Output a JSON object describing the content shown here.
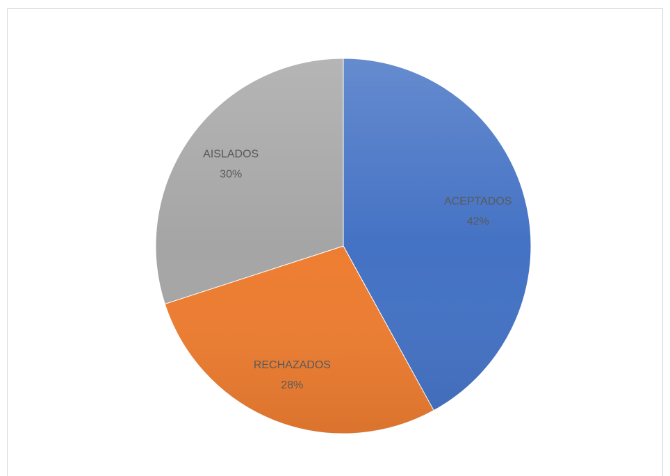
{
  "chart_data": {
    "type": "pie",
    "categories": [
      "ACEPTADOS",
      "RECHAZADOS",
      "AISLADOS"
    ],
    "values": [
      42,
      28,
      30
    ],
    "value_labels": [
      "42%",
      "28%",
      "30%"
    ],
    "colors": [
      "#4472c4",
      "#ed7d31",
      "#a5a5a5"
    ]
  }
}
